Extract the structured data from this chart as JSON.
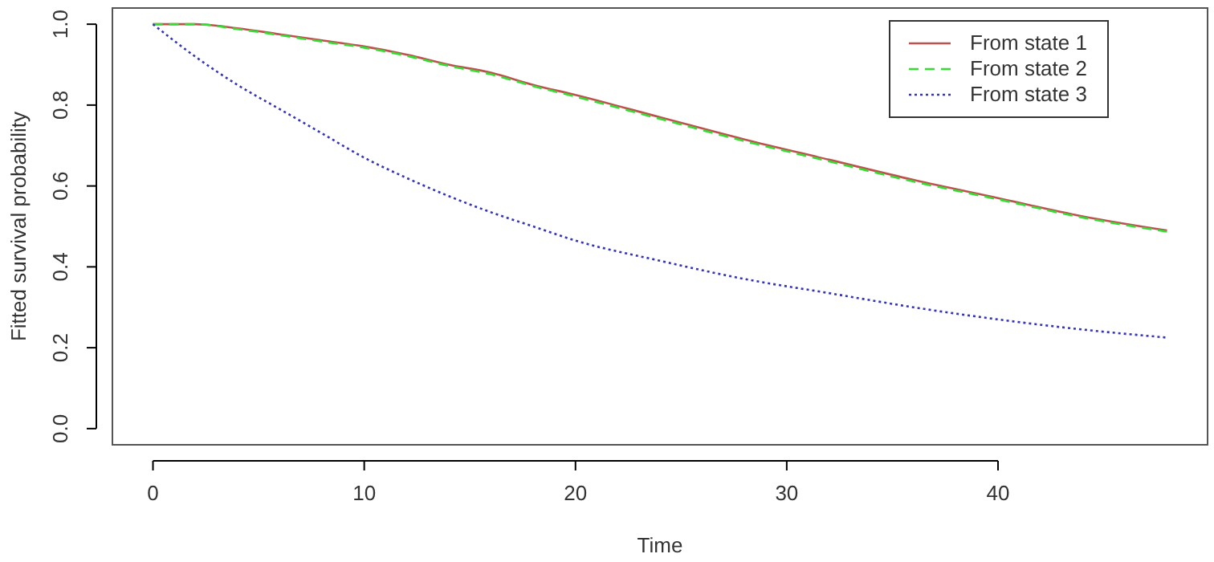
{
  "chart_data": {
    "type": "line",
    "xlabel": "Time",
    "ylabel": "Fitted survival probability",
    "x": [
      0,
      2,
      4,
      6,
      8,
      10,
      12,
      14,
      16,
      18,
      20,
      24,
      28,
      32,
      36,
      40,
      44,
      48
    ],
    "series": [
      {
        "name": "From state 1",
        "color": "#c0504d",
        "line_style": "solid",
        "values": [
          1.0,
          1.0,
          0.99,
          0.975,
          0.96,
          0.945,
          0.925,
          0.9,
          0.88,
          0.85,
          0.825,
          0.77,
          0.715,
          0.665,
          0.615,
          0.57,
          0.525,
          0.49
        ]
      },
      {
        "name": "From state 2",
        "color": "#33dd33",
        "line_style": "dashed",
        "values": [
          1.0,
          1.0,
          0.988,
          0.973,
          0.957,
          0.942,
          0.922,
          0.897,
          0.876,
          0.847,
          0.821,
          0.766,
          0.711,
          0.661,
          0.611,
          0.567,
          0.522,
          0.487
        ]
      },
      {
        "name": "From state 3",
        "color": "#3333bb",
        "line_style": "dotted",
        "values": [
          1.0,
          0.92,
          0.85,
          0.79,
          0.73,
          0.67,
          0.62,
          0.575,
          0.535,
          0.5,
          0.465,
          0.415,
          0.37,
          0.335,
          0.3,
          0.27,
          0.245,
          0.225
        ]
      }
    ],
    "xlim": [
      -1.92,
      49.92
    ],
    "xticks": [
      0,
      10,
      20,
      30,
      40
    ],
    "ylim": [
      -0.04,
      1.04
    ],
    "yticks": [
      {
        "value": 0,
        "label": "0.0"
      },
      {
        "value": 0.2,
        "label": "0.2"
      },
      {
        "value": 0.4,
        "label": "0.4"
      },
      {
        "value": 0.6,
        "label": "0.6"
      },
      {
        "value": 0.8,
        "label": "0.8"
      },
      {
        "value": 1,
        "label": "1.0"
      }
    ],
    "grid": false,
    "legend": "top right",
    "marker": "none"
  }
}
